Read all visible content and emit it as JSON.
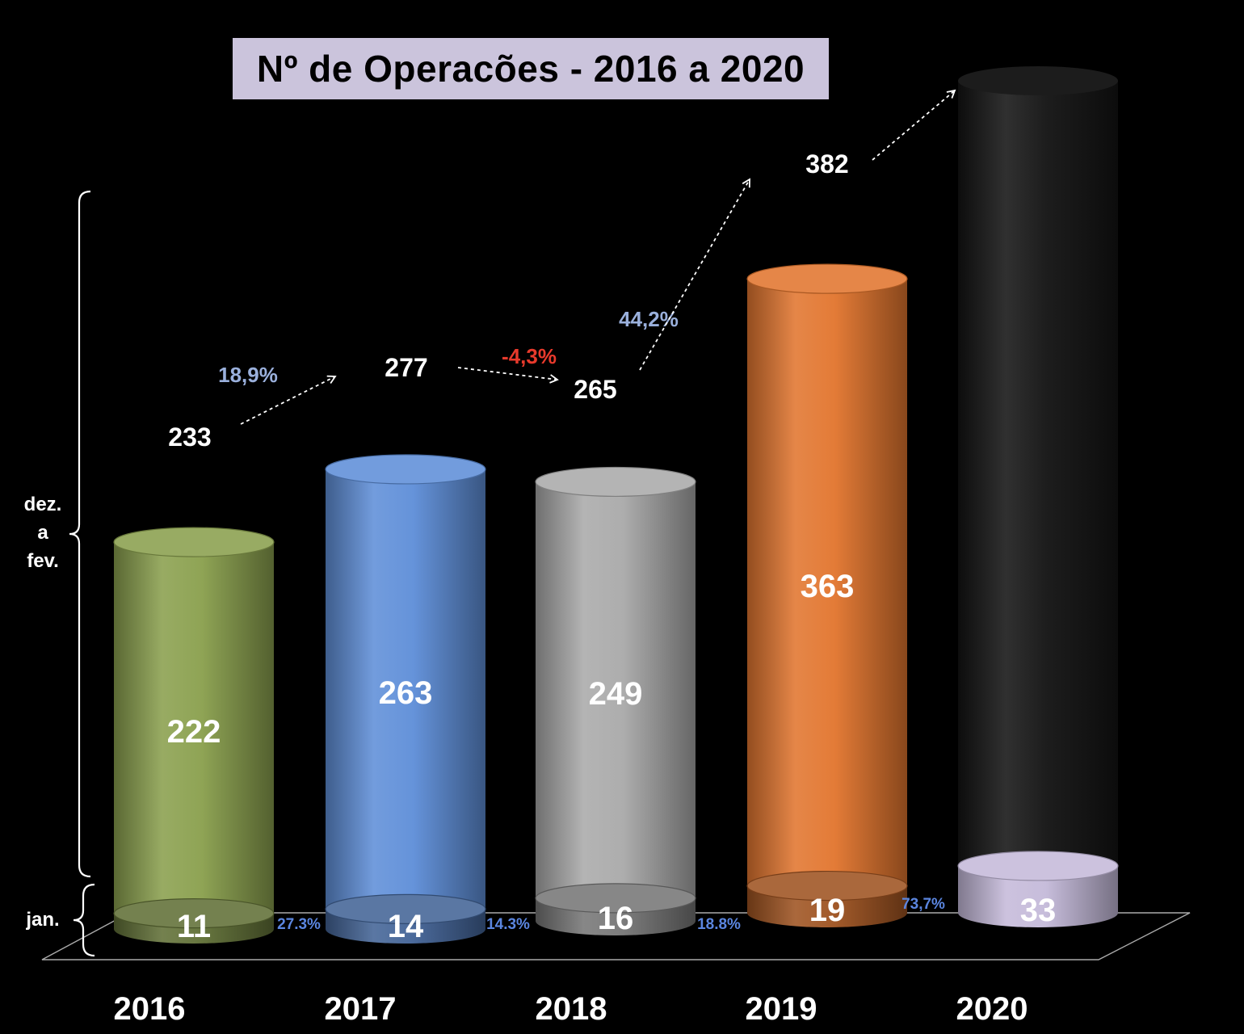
{
  "chart_data": {
    "type": "bar",
    "title": "Nº de Operacões  - 2016 a 2020",
    "categories": [
      "2016",
      "2017",
      "2018",
      "2019",
      "2020"
    ],
    "series": [
      {
        "name": "jan.",
        "values": [
          11,
          14,
          16,
          19,
          33
        ],
        "labels": [
          "11",
          "14",
          "16",
          "19",
          "33"
        ]
      },
      {
        "name": "dez. a fev.",
        "values": [
          222,
          263,
          249,
          363,
          null
        ],
        "labels": [
          "222",
          "263",
          "249",
          "363",
          ""
        ]
      }
    ],
    "totals": [
      "233",
      "277",
      "265",
      "382",
      ""
    ],
    "growth_totals": [
      "18,9%",
      "-4,3%",
      "44,2%",
      ""
    ],
    "growth_jan": [
      "27.3%",
      "14.3%",
      "18.8%",
      "73,7%"
    ],
    "group_labels": {
      "dec_feb_line1": "dez.",
      "dec_feb_line2": "a",
      "dec_feb_line3": "fev.",
      "jan": "jan."
    },
    "ylim": [
      0,
      400
    ],
    "colors": {
      "2016": "#8aa04e",
      "2017": "#5f8fd8",
      "2018": "#aaaaaa",
      "2019": "#e2762f",
      "2020_jan": "#c5bada",
      "2020_ghost": "#141414",
      "growth_positive": "#9ab0dc",
      "growth_negative": "#e83a2c",
      "growth_jan": "#5b86e0",
      "title_bg": "#cbc4dc"
    }
  }
}
